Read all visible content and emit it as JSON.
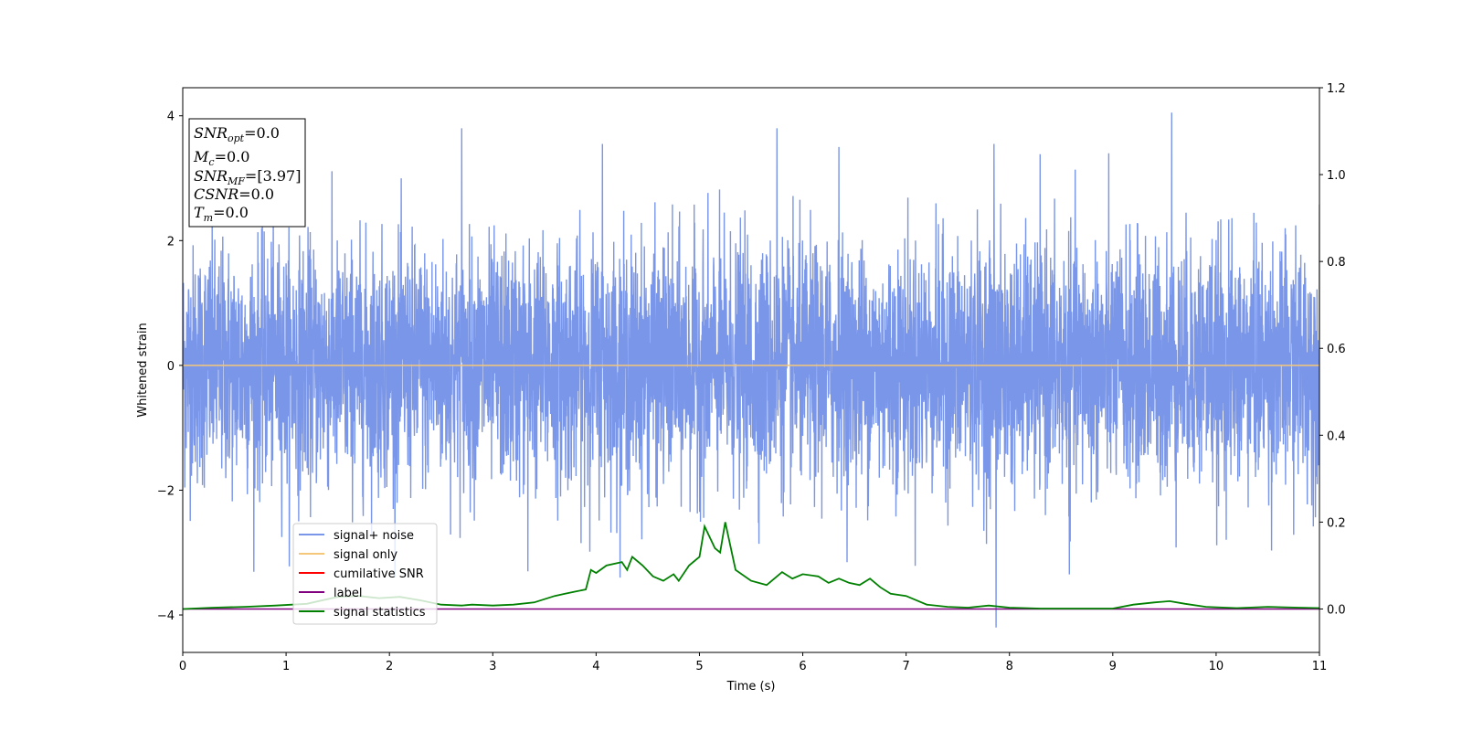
{
  "chart_data": {
    "type": "line",
    "xlabel": "Time (s)",
    "ylabel": "Whitened strain",
    "xlim": [
      0,
      11
    ],
    "ylim": [
      -4.6,
      4.45
    ],
    "y2lim": [
      -0.1,
      1.2
    ],
    "x_ticks": [
      "0",
      "1",
      "2",
      "3",
      "4",
      "5",
      "6",
      "7",
      "8",
      "9",
      "10",
      "11"
    ],
    "y_ticks": [
      "−4",
      "−2",
      "0",
      "2",
      "4"
    ],
    "y2_ticks": [
      "0.0",
      "0.2",
      "0.4",
      "0.6",
      "0.8",
      "1.0",
      "1.2"
    ],
    "grid": false,
    "legend_position": "lower-left",
    "info_box": {
      "line1_main": "SNR",
      "line1_sub": "opt",
      "line1_rest": "=0.0",
      "line2_main": "M",
      "line2_sub": "c",
      "line2_rest": "=0.0",
      "line3_main": "SNR",
      "line3_sub": "MF",
      "line3_rest": "=[3.97]",
      "line4_main": "CSNR",
      "line4_rest": "=0.0",
      "line5_main": "T",
      "line5_sub": "m",
      "line5_rest": "=0.0"
    },
    "series": [
      {
        "name": "signal+ noise",
        "axis": "left",
        "color": "#7a96e8",
        "description_rule": "dense Gaussian-like noise, std ~0.95, spikes to about -4.2 and +4.05",
        "peaks": [
          {
            "x": 2.7,
            "y": 3.8
          },
          {
            "x": 4.06,
            "y": 3.55
          },
          {
            "x": 5.75,
            "y": 3.8
          },
          {
            "x": 6.35,
            "y": 3.5
          },
          {
            "x": 7.85,
            "y": 3.55
          },
          {
            "x": 9.57,
            "y": 4.05
          },
          {
            "x": 7.87,
            "y": -4.2
          },
          {
            "x": 8.58,
            "y": -3.35
          },
          {
            "x": 3.34,
            "y": -3.3
          }
        ]
      },
      {
        "name": "signal only",
        "axis": "left",
        "color": "#f5c77a",
        "x": [
          0,
          11
        ],
        "y": [
          0,
          0
        ]
      },
      {
        "name": "cumilative SNR",
        "axis": "right",
        "color": "#ff0000",
        "x": [],
        "y": []
      },
      {
        "name": "label",
        "axis": "right",
        "color": "#800080",
        "x": [
          0,
          11
        ],
        "y": [
          0,
          0
        ]
      },
      {
        "name": "signal statistics",
        "axis": "right",
        "color": "#008000",
        "x": [
          0,
          0.3,
          0.6,
          0.9,
          1.2,
          1.5,
          1.7,
          1.9,
          2.1,
          2.3,
          2.5,
          2.7,
          2.8,
          3.0,
          3.2,
          3.4,
          3.6,
          3.7,
          3.8,
          3.9,
          3.95,
          4.0,
          4.1,
          4.25,
          4.3,
          4.35,
          4.45,
          4.55,
          4.65,
          4.75,
          4.8,
          4.9,
          5.0,
          5.05,
          5.15,
          5.2,
          5.25,
          5.35,
          5.5,
          5.65,
          5.8,
          5.9,
          6.0,
          6.15,
          6.25,
          6.35,
          6.45,
          6.55,
          6.65,
          6.75,
          6.85,
          7.0,
          7.2,
          7.4,
          7.6,
          7.8,
          8.0,
          8.3,
          8.6,
          9.0,
          9.2,
          9.4,
          9.55,
          9.7,
          9.9,
          10.2,
          10.5,
          10.8,
          11.0
        ],
        "y": [
          0,
          0.003,
          0.005,
          0.008,
          0.012,
          0.028,
          0.03,
          0.025,
          0.028,
          0.02,
          0.01,
          0.008,
          0.01,
          0.008,
          0.01,
          0.015,
          0.03,
          0.035,
          0.04,
          0.045,
          0.09,
          0.083,
          0.1,
          0.108,
          0.09,
          0.12,
          0.1,
          0.075,
          0.065,
          0.08,
          0.065,
          0.1,
          0.12,
          0.19,
          0.14,
          0.13,
          0.2,
          0.09,
          0.065,
          0.055,
          0.085,
          0.07,
          0.08,
          0.075,
          0.06,
          0.07,
          0.06,
          0.055,
          0.07,
          0.05,
          0.035,
          0.03,
          0.01,
          0.005,
          0.003,
          0.008,
          0.003,
          0.001,
          0.001,
          0.001,
          0.01,
          0.015,
          0.018,
          0.012,
          0.005,
          0.002,
          0.005,
          0.003,
          0.002
        ]
      }
    ]
  }
}
